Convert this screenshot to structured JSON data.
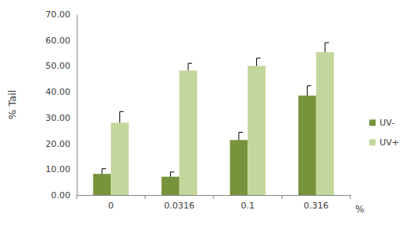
{
  "chart_data": {
    "type": "bar",
    "x_label": "%",
    "y_label": "% Tail",
    "categories": [
      "0",
      "0.0316",
      "0.1",
      "0.316"
    ],
    "series": [
      {
        "name": "UV-",
        "color": "#77933c",
        "values": [
          8.2,
          7.1,
          21.3,
          38.5
        ],
        "errors": [
          2.0,
          1.8,
          3.0,
          3.8
        ]
      },
      {
        "name": "UV+",
        "color": "#c3d69b",
        "values": [
          28.0,
          48.2,
          50.0,
          55.3
        ],
        "errors": [
          4.3,
          2.8,
          3.0,
          3.7
        ]
      }
    ],
    "ylim": [
      0,
      70
    ],
    "yticks": [
      {
        "value": 0,
        "label": "0.00"
      },
      {
        "value": 10,
        "label": "10.00"
      },
      {
        "value": 20,
        "label": "20.00"
      },
      {
        "value": 30,
        "label": "30.00"
      },
      {
        "value": 40,
        "label": "40.00"
      },
      {
        "value": 50,
        "label": "50.00"
      },
      {
        "value": 60,
        "label": "60.00"
      },
      {
        "value": 70,
        "label": "70.00"
      }
    ],
    "grid": false,
    "legend": "right"
  }
}
